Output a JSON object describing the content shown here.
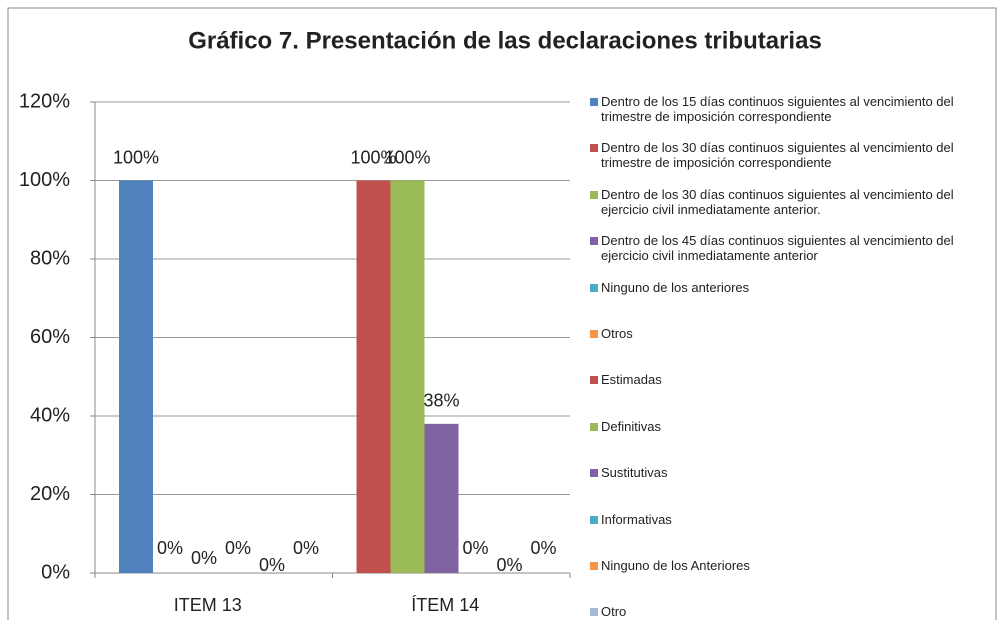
{
  "chart_data": {
    "type": "bar",
    "title": "Gráfico 7. Presentación  de las declaraciones tributarias",
    "categories": [
      "ITEM 13",
      "ÍTEM 14"
    ],
    "ylim": [
      0,
      120
    ],
    "yticks": [
      {
        "value": 0,
        "label": "0%"
      },
      {
        "value": 20,
        "label": "20%"
      },
      {
        "value": 40,
        "label": "40%"
      },
      {
        "value": 60,
        "label": "60%"
      },
      {
        "value": 80,
        "label": "80%"
      },
      {
        "value": 100,
        "label": "100%"
      },
      {
        "value": 120,
        "label": "120%"
      }
    ],
    "grid": true,
    "legend": "right",
    "series": [
      {
        "name": "Dentro de los 15 días continuos siguientes al vencimiento del trimestre de imposición correspondiente",
        "color": "#4f81bd",
        "values": [
          100,
          null
        ],
        "value_labels": [
          "100%",
          null
        ]
      },
      {
        "name": "Dentro de los 30 días continuos siguientes al vencimiento del trimestre de imposición correspondiente",
        "color": "#c0504d",
        "values": [
          0,
          null
        ],
        "value_labels": [
          "0%",
          null
        ]
      },
      {
        "name": "Dentro de los 30 días continuos siguientes al vencimiento del ejercicio civil inmediatamente anterior.",
        "color": "#9bbb59",
        "values": [
          0,
          null
        ],
        "value_labels": [
          "0%",
          null
        ]
      },
      {
        "name": "Dentro de los 45 días continuos siguientes al vencimiento del ejercicio civil inmediatamente anterior",
        "color": "#8064a2",
        "values": [
          0,
          null
        ],
        "value_labels": [
          "0%",
          null
        ]
      },
      {
        "name": "Ninguno de los anteriores",
        "color": "#4bacc6",
        "values": [
          0,
          null
        ],
        "value_labels": [
          "0%",
          null
        ]
      },
      {
        "name": "Otros",
        "color": "#f79646",
        "values": [
          0,
          null
        ],
        "value_labels": [
          "0%",
          null
        ]
      },
      {
        "name": "Estimadas",
        "color": "#c0504d",
        "values": [
          null,
          100
        ],
        "value_labels": [
          null,
          "100%"
        ]
      },
      {
        "name": "Definitivas",
        "color": "#9bbb59",
        "values": [
          null,
          100
        ],
        "value_labels": [
          null,
          "100%"
        ]
      },
      {
        "name": "Sustitutivas",
        "color": "#8064a2",
        "values": [
          null,
          38
        ],
        "value_labels": [
          null,
          "38%"
        ]
      },
      {
        "name": "Informativas",
        "color": "#4bacc6",
        "values": [
          null,
          0
        ],
        "value_labels": [
          null,
          "0%"
        ]
      },
      {
        "name": "Ninguno de los Anteriores",
        "color": "#f79646",
        "values": [
          null,
          0
        ],
        "value_labels": [
          null,
          "0%"
        ]
      },
      {
        "name": "Otro",
        "color": "#a6b9d9",
        "values": [
          null,
          0
        ],
        "value_labels": [
          null,
          "0%"
        ]
      }
    ]
  }
}
